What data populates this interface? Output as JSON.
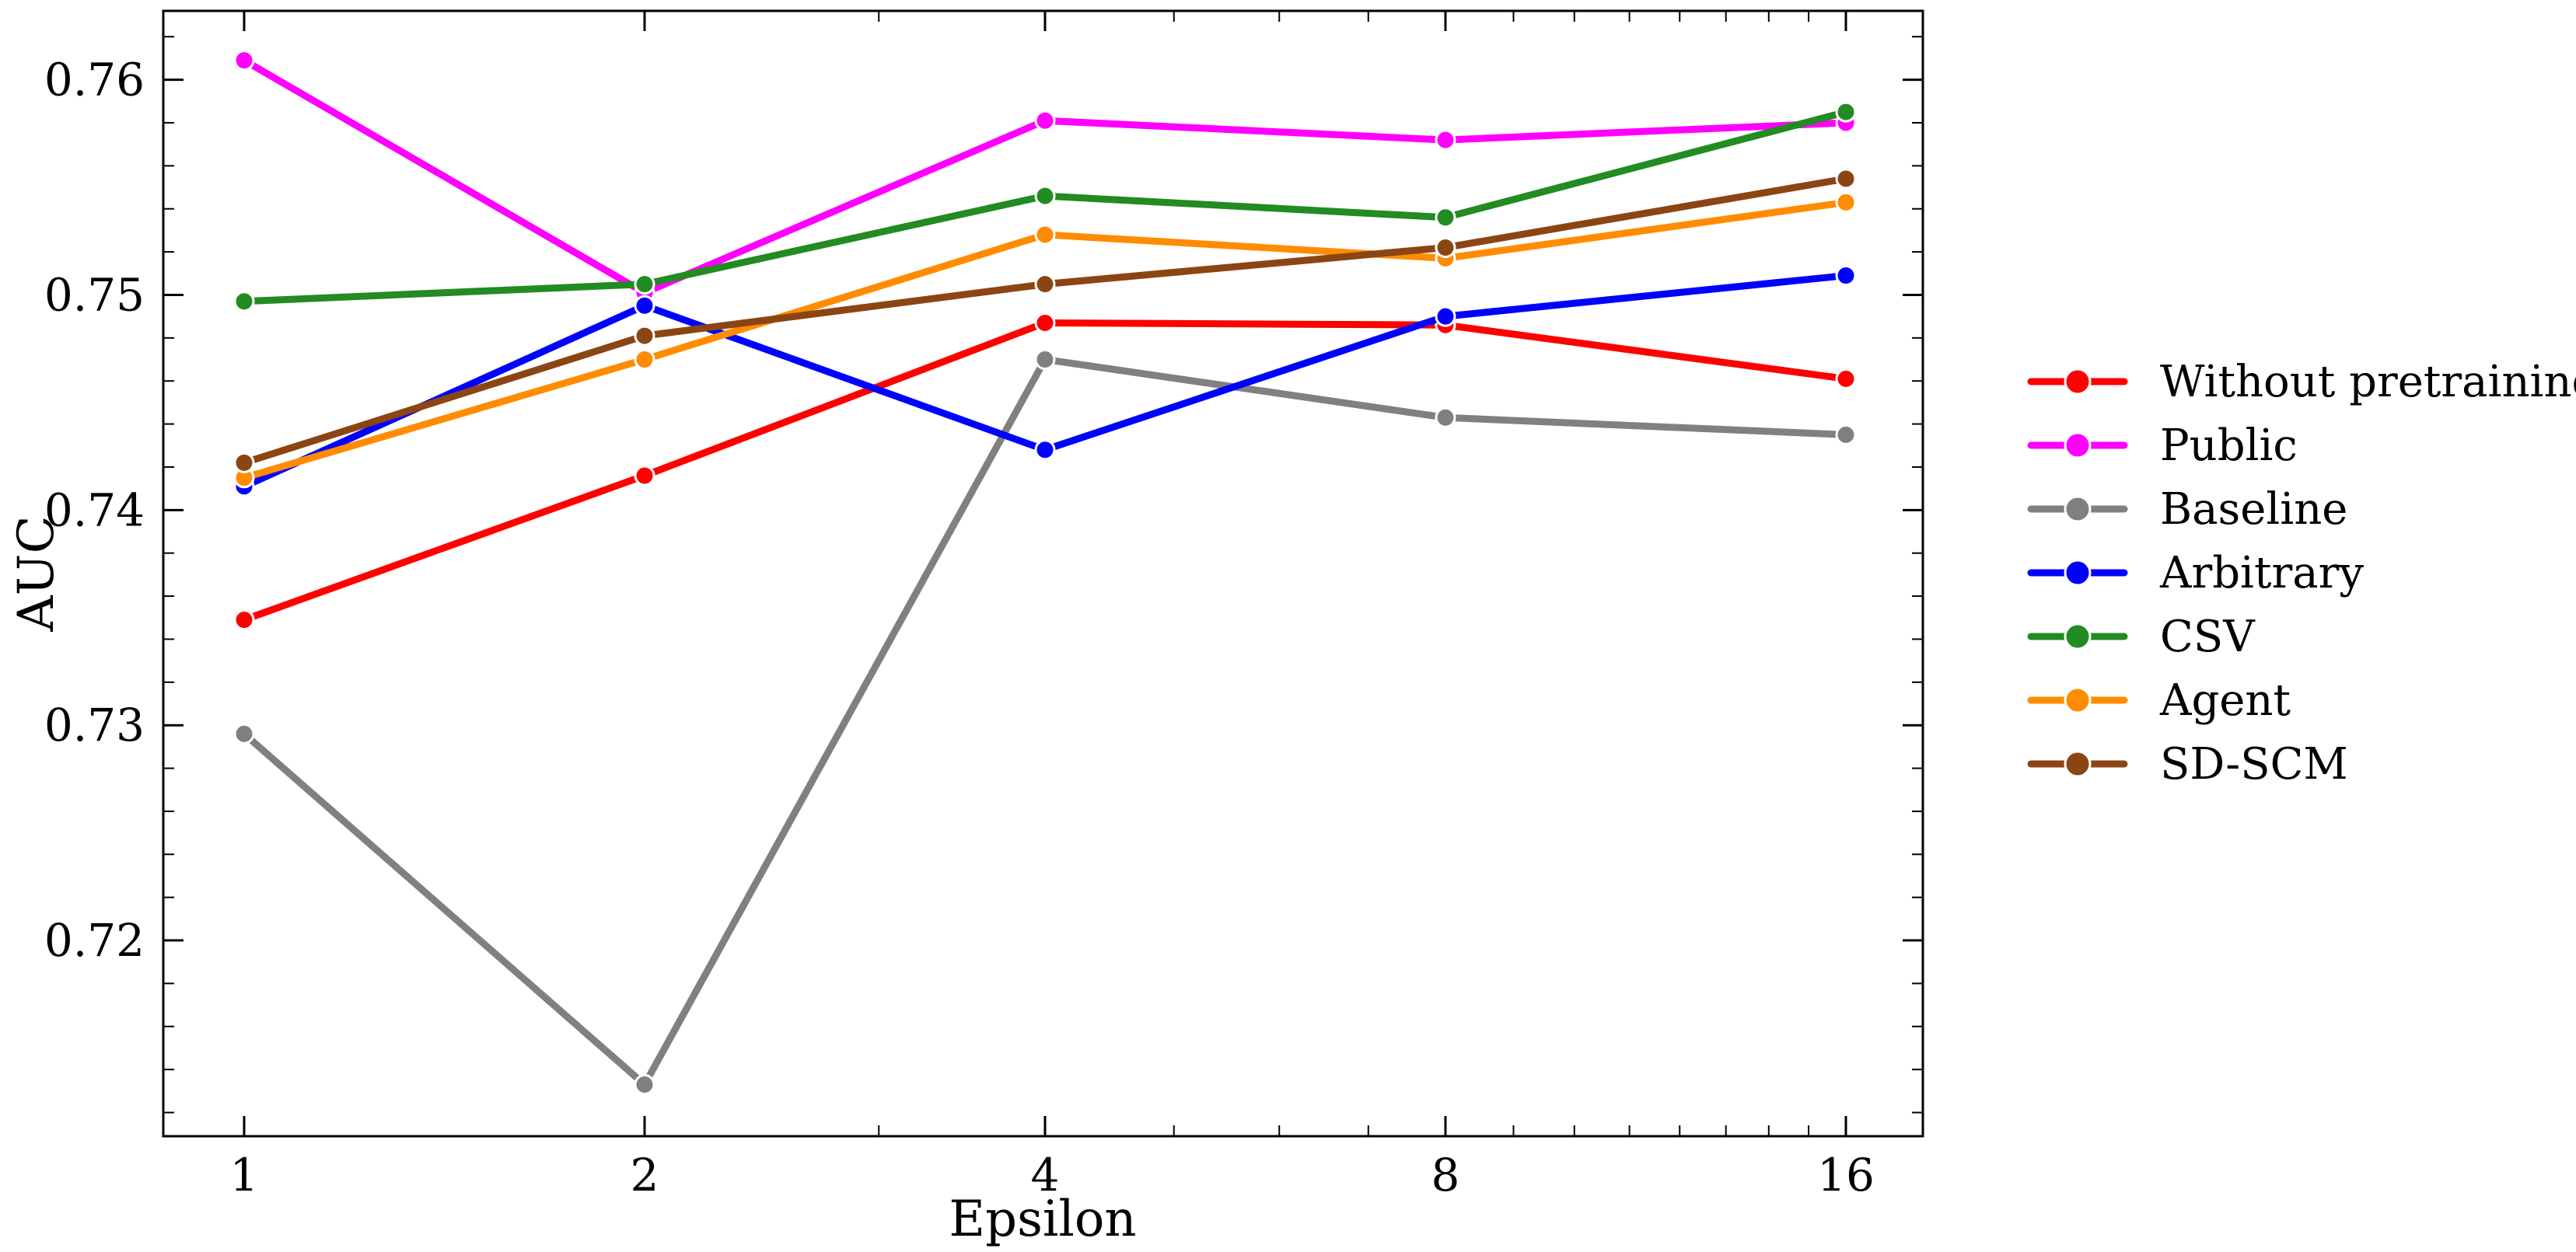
{
  "chart_data": {
    "type": "line",
    "title": "",
    "xlabel": "Epsilon",
    "ylabel": "AUC",
    "x": [
      1,
      2,
      4,
      8,
      16
    ],
    "x_tick_labels": [
      "1",
      "2",
      "4",
      "8",
      "16"
    ],
    "x_scale": "log2",
    "y_ticks": [
      0.72,
      0.73,
      0.74,
      0.75,
      0.76
    ],
    "y_tick_labels": [
      "0.72",
      "0.73",
      "0.74",
      "0.75",
      "0.76"
    ],
    "ylim": [
      0.7109,
      0.7632
    ],
    "grid": false,
    "legend_position": "right, outside plot",
    "series": [
      {
        "name": "Without pretraining",
        "color": "#ff0000",
        "values": [
          0.7349,
          0.7416,
          0.7487,
          0.7486,
          0.7461
        ]
      },
      {
        "name": "Public",
        "color": "#ff00ff",
        "values": [
          0.7609,
          0.7501,
          0.7581,
          0.7572,
          0.758
        ]
      },
      {
        "name": "Baseline",
        "color": "#808080",
        "values": [
          0.7296,
          0.7133,
          0.747,
          0.7443,
          0.7435
        ]
      },
      {
        "name": "Arbitrary",
        "color": "#0000ff",
        "values": [
          0.7411,
          0.7495,
          0.7428,
          0.749,
          0.7509
        ]
      },
      {
        "name": "CSV",
        "color": "#228b22",
        "values": [
          0.7497,
          0.7505,
          0.7546,
          0.7536,
          0.7585
        ]
      },
      {
        "name": "Agent",
        "color": "#ff8c00",
        "values": [
          0.7415,
          0.747,
          0.7528,
          0.7517,
          0.7543
        ]
      },
      {
        "name": "SD-SCM",
        "color": "#8b4513",
        "values": [
          0.7422,
          0.7481,
          0.7505,
          0.7522,
          0.7554
        ]
      }
    ]
  }
}
